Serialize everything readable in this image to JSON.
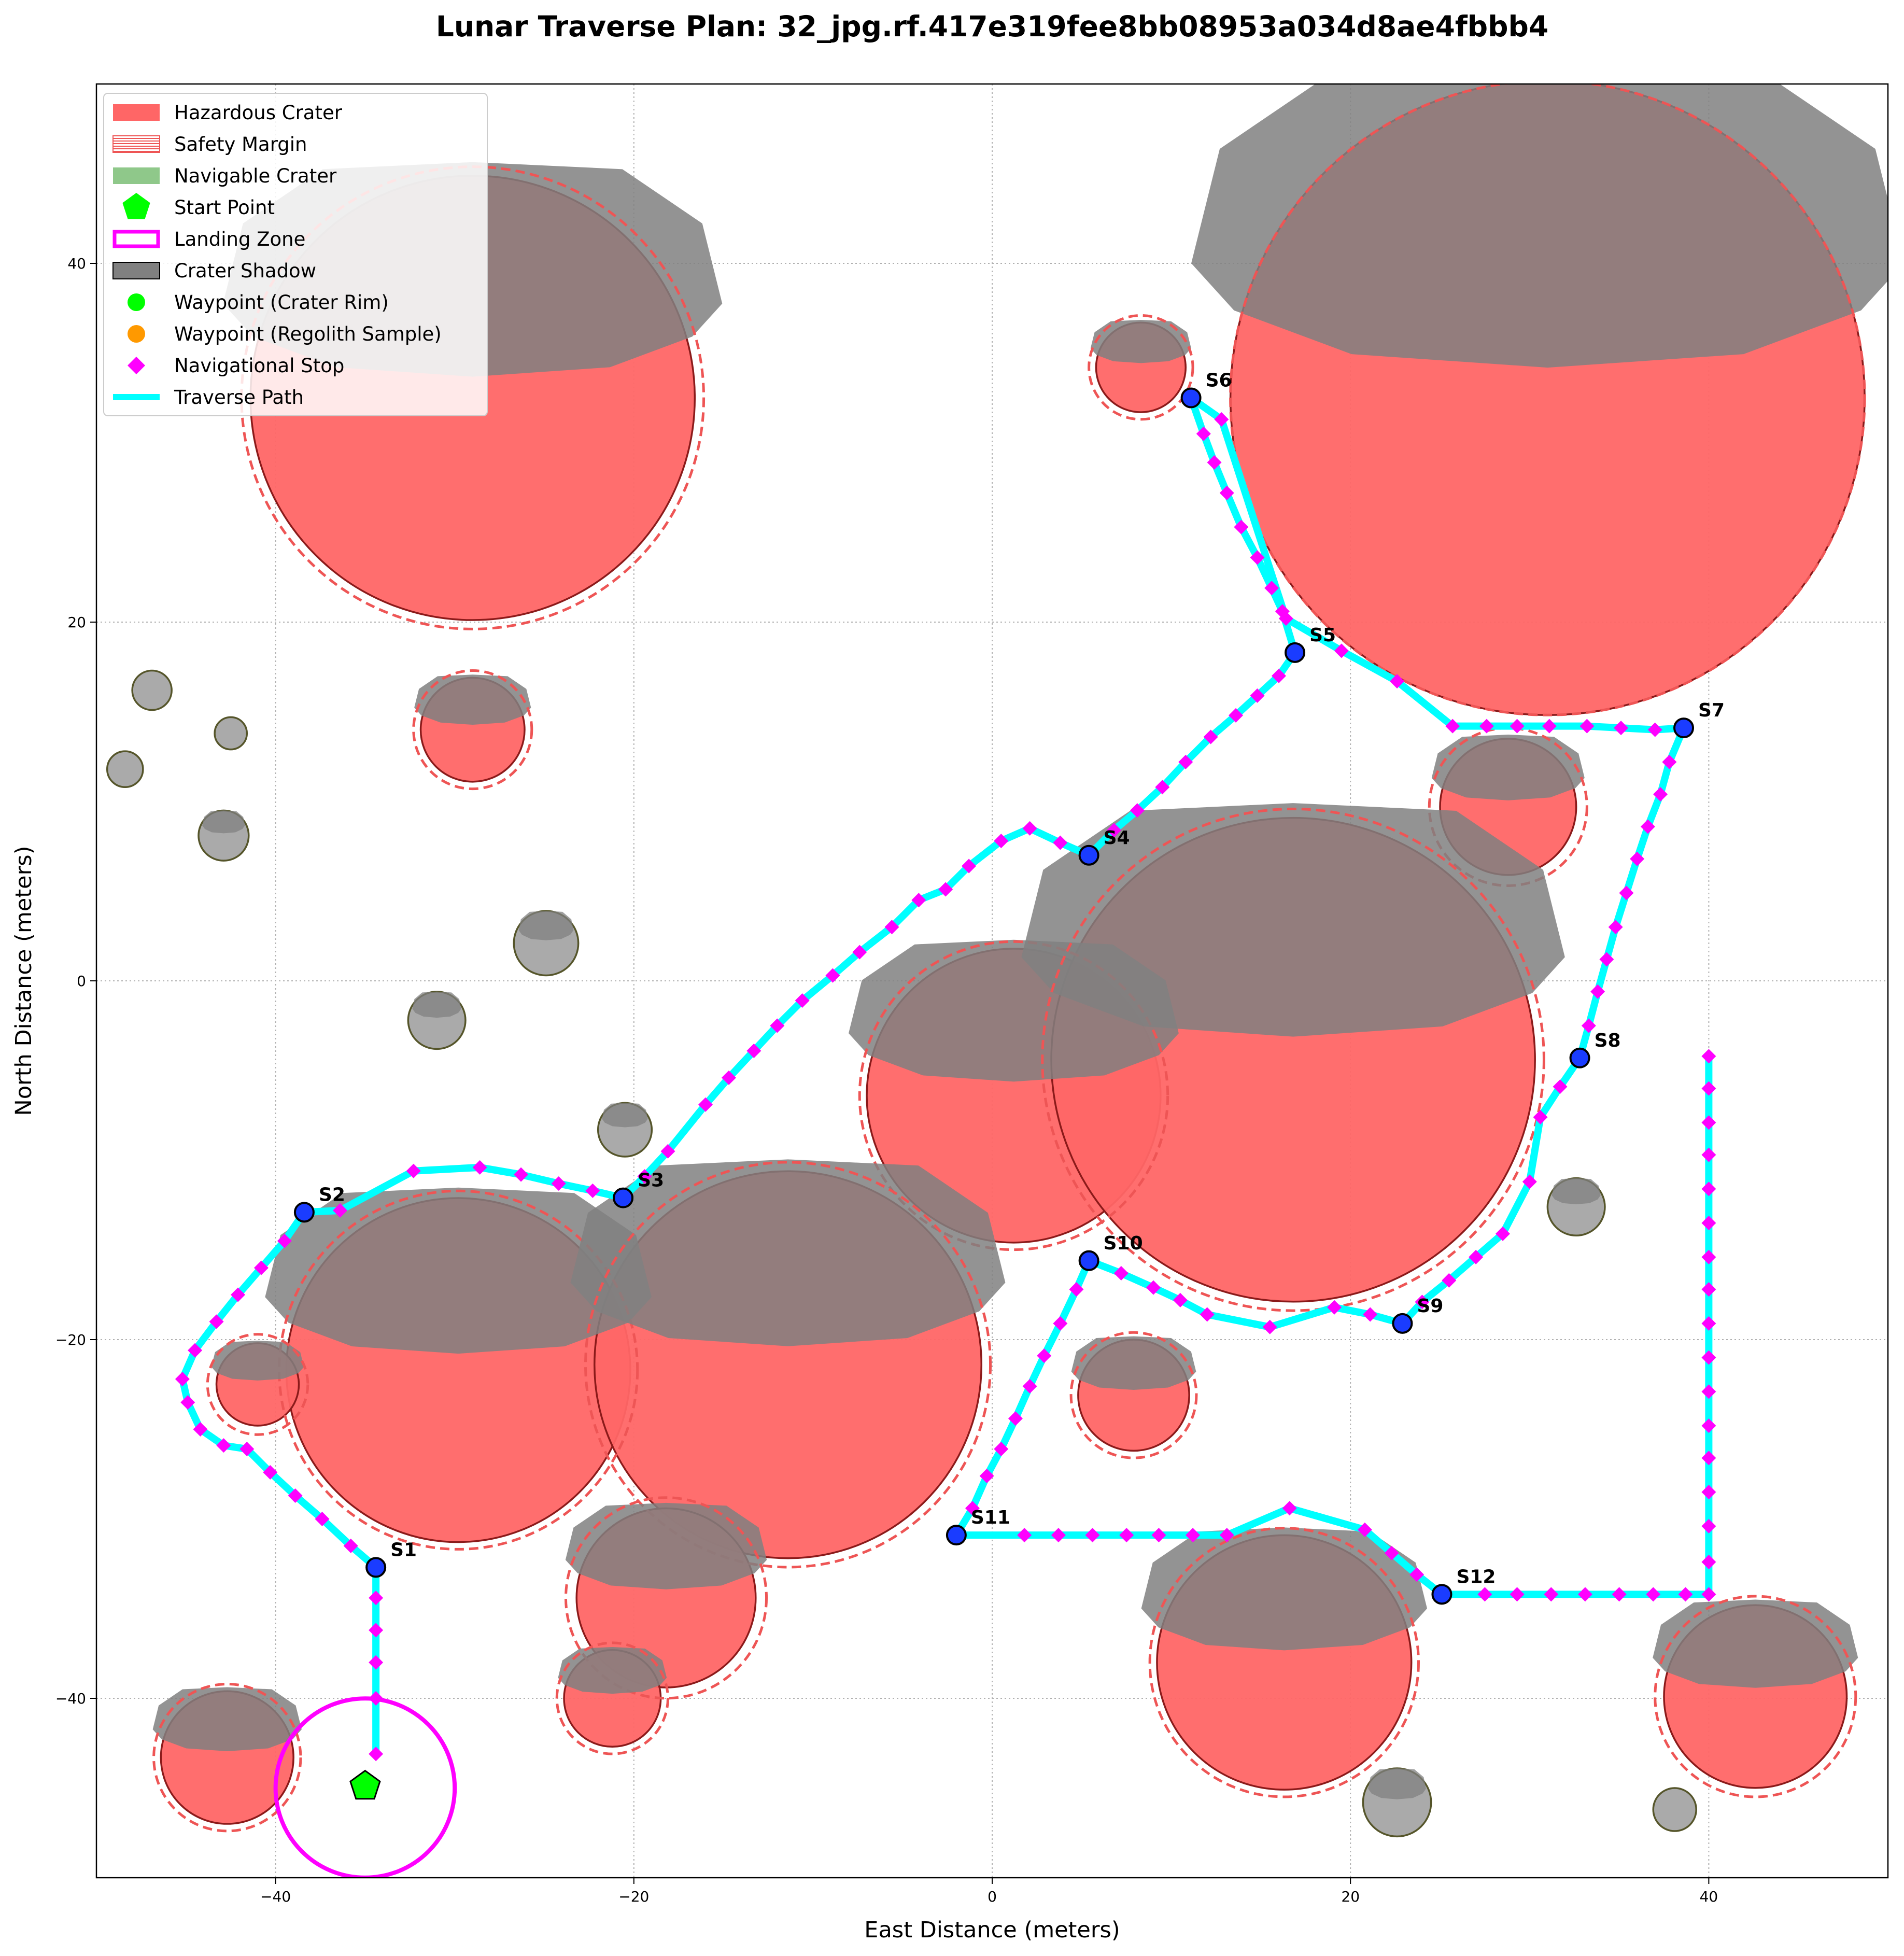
{
  "chart_data": {
    "type": "scatter",
    "title": "Lunar Traverse Plan: 32_jpg.rf.417e319fee8bb08953a034d8ae4fbbb4",
    "xlabel": "East Distance (meters)",
    "ylabel": "North Distance (meters)",
    "xlim": [
      -50,
      50
    ],
    "ylim": [
      -50,
      50
    ],
    "xticks": [
      -40,
      -20,
      0,
      20,
      40
    ],
    "yticks": [
      -40,
      -20,
      0,
      20,
      40
    ],
    "grid": true,
    "legend_position": "upper-left",
    "legend": [
      {
        "label": "Hazardous Crater",
        "kind": "hazard"
      },
      {
        "label": "Safety Margin",
        "kind": "margin"
      },
      {
        "label": "Navigable Crater",
        "kind": "navigable"
      },
      {
        "label": "Start Point",
        "kind": "start"
      },
      {
        "label": "Landing Zone",
        "kind": "landing"
      },
      {
        "label": "Crater Shadow",
        "kind": "shadow"
      },
      {
        "label": "Waypoint (Crater Rim)",
        "kind": "wp-rim"
      },
      {
        "label": "Waypoint (Regolith Sample)",
        "kind": "wp-regolith"
      },
      {
        "label": "Navigational Stop",
        "kind": "navstop"
      },
      {
        "label": "Traverse Path",
        "kind": "path"
      }
    ],
    "colors": {
      "hazard": "#ff6666",
      "hazard_edge": "#8b1a1a",
      "margin": "#ee5555",
      "navigable_fill": "#aaaaaa",
      "navigable_edge": "#55552a",
      "shadow": "#808080",
      "path": "#00ffff",
      "navstop": "#ff00ff",
      "stop_fill": "#1a3cff",
      "start": "#00ff00",
      "landing": "#ff00ff"
    },
    "hazardous_craters": [
      {
        "x": -29,
        "y": 32.5,
        "r": 12.4,
        "margin": 12.9
      },
      {
        "x": -29,
        "y": 14,
        "r": 2.9,
        "margin": 3.3
      },
      {
        "x": 8.3,
        "y": 34.2,
        "r": 2.5,
        "margin": 2.9
      },
      {
        "x": 31,
        "y": 32.5,
        "r": 17.7,
        "margin": 17.7
      },
      {
        "x": 28.8,
        "y": 9.7,
        "r": 3.8,
        "margin": 4.4
      },
      {
        "x": 1.2,
        "y": -6.4,
        "r": 8.2,
        "margin": 8.6
      },
      {
        "x": 16.8,
        "y": -4.4,
        "r": 13.5,
        "margin": 14.0
      },
      {
        "x": -29.8,
        "y": -21.7,
        "r": 9.6,
        "margin": 10.0
      },
      {
        "x": -11.4,
        "y": -21.4,
        "r": 10.8,
        "margin": 11.3
      },
      {
        "x": -41,
        "y": -22.5,
        "r": 2.3,
        "margin": 2.8
      },
      {
        "x": 7.9,
        "y": -23.1,
        "r": 3.1,
        "margin": 3.5
      },
      {
        "x": -18.2,
        "y": -34.4,
        "r": 5.0,
        "margin": 5.6
      },
      {
        "x": -21.2,
        "y": -40.0,
        "r": 2.7,
        "margin": 3.1
      },
      {
        "x": -42.7,
        "y": -43.3,
        "r": 3.7,
        "margin": 4.1
      },
      {
        "x": 16.3,
        "y": -38.0,
        "r": 7.1,
        "margin": 7.5
      },
      {
        "x": 42.6,
        "y": -39.9,
        "r": 5.1,
        "margin": 5.6
      }
    ],
    "navigable_craters": [
      {
        "x": -46.9,
        "y": 16.2,
        "r": 1.1
      },
      {
        "x": -42.5,
        "y": 13.8,
        "r": 0.9
      },
      {
        "x": -48.4,
        "y": 11.8,
        "r": 1.0
      },
      {
        "x": -42.9,
        "y": 8.1,
        "r": 1.4
      },
      {
        "x": -24.9,
        "y": 2.1,
        "r": 1.8
      },
      {
        "x": -31.0,
        "y": -2.2,
        "r": 1.6
      },
      {
        "x": -20.5,
        "y": -8.3,
        "r": 1.5
      },
      {
        "x": 32.6,
        "y": -12.6,
        "r": 1.6
      },
      {
        "x": 22.6,
        "y": -45.8,
        "r": 1.9
      },
      {
        "x": 38.1,
        "y": -46.2,
        "r": 1.2
      }
    ],
    "start_point": {
      "x": -35,
      "y": -44.9
    },
    "landing_zone": {
      "x": -35,
      "y": -45,
      "r": 5
    },
    "stops": [
      {
        "label": "S1",
        "x": -34.4,
        "y": -32.7
      },
      {
        "label": "S2",
        "x": -38.4,
        "y": -12.9
      },
      {
        "label": "S3",
        "x": -20.6,
        "y": -12.1
      },
      {
        "label": "S4",
        "x": 5.4,
        "y": 7.0
      },
      {
        "label": "S5",
        "x": 16.9,
        "y": 18.3
      },
      {
        "label": "S6",
        "x": 11.1,
        "y": 32.5
      },
      {
        "label": "S7",
        "x": 38.6,
        "y": 14.1
      },
      {
        "label": "S8",
        "x": 32.8,
        "y": -4.3
      },
      {
        "label": "S9",
        "x": 22.9,
        "y": -19.1
      },
      {
        "label": "S10",
        "x": 5.4,
        "y": -15.6
      },
      {
        "label": "S11",
        "x": -2.0,
        "y": -30.9
      },
      {
        "label": "S12",
        "x": 25.1,
        "y": -34.2
      }
    ],
    "traverse_path": [
      [
        -34.4,
        -43.1
      ],
      [
        -34.4,
        -40.0
      ],
      [
        -34.4,
        -38.0
      ],
      [
        -34.4,
        -36.2
      ],
      [
        -34.4,
        -34.4
      ],
      [
        -34.4,
        -32.7
      ],
      [
        -35.8,
        -31.5
      ],
      [
        -37.4,
        -30.0
      ],
      [
        -38.9,
        -28.7
      ],
      [
        -40.3,
        -27.4
      ],
      [
        -41.6,
        -26.1
      ],
      [
        -42.9,
        -25.9
      ],
      [
        -44.2,
        -25.0
      ],
      [
        -44.9,
        -23.5
      ],
      [
        -45.2,
        -22.2
      ],
      [
        -44.5,
        -20.6
      ],
      [
        -43.3,
        -19.0
      ],
      [
        -42.1,
        -17.5
      ],
      [
        -40.8,
        -16.0
      ],
      [
        -39.5,
        -14.5
      ],
      [
        -38.4,
        -12.9
      ],
      [
        -36.4,
        -12.8
      ],
      [
        -32.3,
        -10.6
      ],
      [
        -28.6,
        -10.4
      ],
      [
        -26.3,
        -10.8
      ],
      [
        -24.2,
        -11.3
      ],
      [
        -22.3,
        -11.7
      ],
      [
        -20.6,
        -12.1
      ],
      [
        -19.4,
        -10.9
      ],
      [
        -18.1,
        -9.5
      ],
      [
        -16.0,
        -6.9
      ],
      [
        -14.7,
        -5.4
      ],
      [
        -13.3,
        -3.9
      ],
      [
        -12.0,
        -2.5
      ],
      [
        -10.6,
        -1.1
      ],
      [
        -8.9,
        0.3
      ],
      [
        -7.4,
        1.6
      ],
      [
        -5.6,
        3.0
      ],
      [
        -4.1,
        4.5
      ],
      [
        -2.6,
        5.1
      ],
      [
        -1.3,
        6.4
      ],
      [
        0.5,
        7.8
      ],
      [
        2.1,
        8.5
      ],
      [
        3.8,
        7.7
      ],
      [
        5.4,
        7.0
      ],
      [
        6.8,
        8.4
      ],
      [
        8.1,
        9.5
      ],
      [
        9.5,
        10.8
      ],
      [
        10.8,
        12.2
      ],
      [
        12.2,
        13.6
      ],
      [
        13.6,
        14.8
      ],
      [
        14.8,
        15.9
      ],
      [
        16.0,
        17.0
      ],
      [
        16.9,
        18.3
      ],
      [
        16.2,
        20.6
      ],
      [
        15.6,
        21.9
      ],
      [
        14.8,
        23.6
      ],
      [
        13.9,
        25.3
      ],
      [
        13.1,
        27.2
      ],
      [
        12.4,
        28.9
      ],
      [
        11.8,
        30.5
      ],
      [
        11.1,
        32.5
      ],
      [
        12.8,
        31.3
      ],
      [
        16.4,
        20.2
      ],
      [
        19.5,
        18.4
      ],
      [
        22.6,
        16.7
      ],
      [
        25.7,
        14.2
      ],
      [
        27.6,
        14.2
      ],
      [
        29.3,
        14.2
      ],
      [
        31.1,
        14.2
      ],
      [
        33.2,
        14.2
      ],
      [
        35.1,
        14.1
      ],
      [
        37.0,
        14.0
      ],
      [
        38.6,
        14.1
      ],
      [
        37.8,
        12.2
      ],
      [
        37.3,
        10.4
      ],
      [
        36.6,
        8.6
      ],
      [
        36.0,
        6.8
      ],
      [
        35.4,
        4.9
      ],
      [
        34.8,
        3.0
      ],
      [
        34.3,
        1.2
      ],
      [
        33.8,
        -0.6
      ],
      [
        33.3,
        -2.5
      ],
      [
        32.8,
        -4.3
      ],
      [
        31.7,
        -5.9
      ],
      [
        30.6,
        -7.6
      ],
      [
        30.0,
        -11.2
      ],
      [
        28.5,
        -14.1
      ],
      [
        27.0,
        -15.4
      ],
      [
        25.5,
        -16.7
      ],
      [
        24.0,
        -17.9
      ],
      [
        22.9,
        -19.1
      ],
      [
        21.1,
        -18.6
      ],
      [
        19.1,
        -18.2
      ],
      [
        15.5,
        -19.3
      ],
      [
        12.0,
        -18.6
      ],
      [
        10.5,
        -17.8
      ],
      [
        9.0,
        -17.1
      ],
      [
        7.2,
        -16.3
      ],
      [
        5.4,
        -15.6
      ],
      [
        4.7,
        -17.2
      ],
      [
        3.8,
        -19.1
      ],
      [
        2.9,
        -20.9
      ],
      [
        2.1,
        -22.6
      ],
      [
        1.3,
        -24.4
      ],
      [
        0.5,
        -26.1
      ],
      [
        -0.3,
        -27.6
      ],
      [
        -1.1,
        -29.4
      ],
      [
        -2.0,
        -30.9
      ],
      [
        1.8,
        -30.9
      ],
      [
        3.7,
        -30.9
      ],
      [
        5.6,
        -30.9
      ],
      [
        7.5,
        -30.9
      ],
      [
        9.3,
        -30.9
      ],
      [
        11.2,
        -30.9
      ],
      [
        13.1,
        -30.9
      ],
      [
        16.6,
        -29.4
      ],
      [
        20.8,
        -30.6
      ],
      [
        22.3,
        -31.9
      ],
      [
        23.7,
        -33.1
      ],
      [
        25.1,
        -34.2
      ],
      [
        27.5,
        -34.2
      ],
      [
        29.3,
        -34.2
      ],
      [
        31.2,
        -34.2
      ],
      [
        33.1,
        -34.2
      ],
      [
        35.0,
        -34.2
      ],
      [
        36.9,
        -34.2
      ],
      [
        38.7,
        -34.2
      ],
      [
        40.0,
        -34.2
      ],
      [
        40.0,
        -32.4
      ],
      [
        40.0,
        -30.4
      ],
      [
        40.0,
        -28.5
      ],
      [
        40.0,
        -26.6
      ],
      [
        40.0,
        -24.8
      ],
      [
        40.0,
        -22.9
      ],
      [
        40.0,
        -21.0
      ],
      [
        40.0,
        -19.1
      ],
      [
        40.0,
        -17.2
      ],
      [
        40.0,
        -15.4
      ],
      [
        40.0,
        -13.5
      ],
      [
        40.0,
        -11.6
      ],
      [
        40.0,
        -9.7
      ],
      [
        40.0,
        -7.9
      ],
      [
        40.0,
        -6.0
      ],
      [
        40.0,
        -4.2
      ]
    ]
  }
}
